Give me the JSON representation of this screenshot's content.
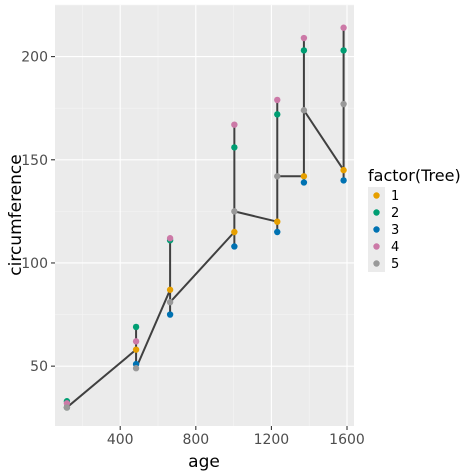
{
  "chart_data": {
    "type": "scatter",
    "xlabel": "age",
    "ylabel": "circumference",
    "xlim": [
      55,
      1637
    ],
    "ylim": [
      21,
      225
    ],
    "xticks": [
      400,
      800,
      1200,
      1600
    ],
    "yticks": [
      50,
      100,
      150,
      200
    ],
    "legend_title": "factor(Tree)",
    "legend_position": "right",
    "grid": true,
    "point_series": [
      {
        "name": "1",
        "color": "#E69F00",
        "x": [
          118,
          484,
          664,
          1004,
          1231,
          1372,
          1582
        ],
        "y": [
          30,
          58,
          87,
          115,
          120,
          142,
          145
        ]
      },
      {
        "name": "2",
        "color": "#009E73",
        "x": [
          118,
          484,
          664,
          1004,
          1231,
          1372,
          1582
        ],
        "y": [
          33,
          69,
          111,
          156,
          172,
          203,
          203
        ]
      },
      {
        "name": "3",
        "color": "#0072B2",
        "x": [
          118,
          484,
          664,
          1004,
          1231,
          1372,
          1582
        ],
        "y": [
          30,
          51,
          75,
          108,
          115,
          139,
          140
        ]
      },
      {
        "name": "4",
        "color": "#CC79A7",
        "x": [
          118,
          484,
          664,
          1004,
          1231,
          1372,
          1582
        ],
        "y": [
          32,
          62,
          112,
          167,
          179,
          209,
          214
        ]
      },
      {
        "name": "5",
        "color": "#999999",
        "x": [
          118,
          484,
          664,
          1004,
          1231,
          1372,
          1582
        ],
        "y": [
          30,
          49,
          81,
          125,
          142,
          174,
          177
        ]
      }
    ],
    "path_series": {
      "color": "#404040",
      "x": [
        118,
        118,
        118,
        118,
        118,
        484,
        484,
        484,
        484,
        484,
        664,
        664,
        664,
        664,
        664,
        1004,
        1004,
        1004,
        1004,
        1004,
        1231,
        1231,
        1231,
        1231,
        1231,
        1372,
        1372,
        1372,
        1372,
        1372,
        1582,
        1582,
        1582,
        1582,
        1582
      ],
      "y": [
        30,
        33,
        30,
        32,
        30,
        58,
        69,
        51,
        62,
        49,
        87,
        111,
        75,
        112,
        81,
        115,
        156,
        108,
        167,
        125,
        120,
        172,
        115,
        179,
        142,
        142,
        203,
        139,
        209,
        174,
        145,
        203,
        140,
        214,
        177
      ]
    }
  }
}
